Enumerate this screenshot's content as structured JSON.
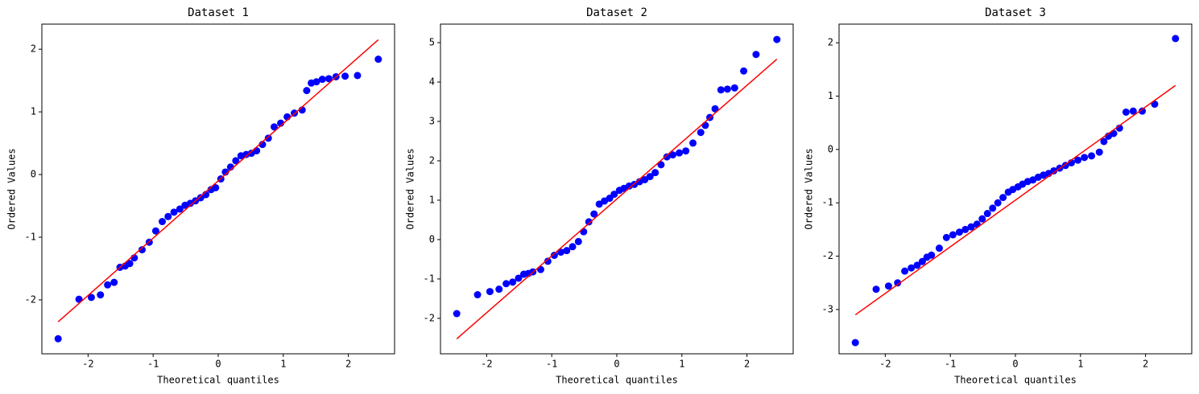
{
  "chart_data": [
    {
      "type": "scatter",
      "title": "Dataset 1",
      "xlabel": "Theoretical quantiles",
      "ylabel": "Ordered Values",
      "xlim": [
        -2.71,
        2.71
      ],
      "ylim": [
        -2.86,
        2.4
      ],
      "xticks": [
        -2,
        -1,
        0,
        1,
        2
      ],
      "yticks": [
        -2,
        -1,
        0,
        1,
        2
      ],
      "series": [
        {
          "mode": "markers",
          "color": "#0000ff",
          "x": [
            -2.46,
            -2.14,
            -1.95,
            -1.81,
            -1.7,
            -1.6,
            -1.51,
            -1.43,
            -1.36,
            -1.29,
            -1.17,
            -1.06,
            -0.96,
            -0.86,
            -0.77,
            -0.68,
            -0.59,
            -0.51,
            -0.43,
            -0.35,
            -0.27,
            -0.19,
            -0.11,
            -0.04,
            0.04,
            0.11,
            0.19,
            0.27,
            0.35,
            0.43,
            0.51,
            0.59,
            0.68,
            0.77,
            0.86,
            0.96,
            1.06,
            1.17,
            1.29,
            1.36,
            1.43,
            1.51,
            1.6,
            1.7,
            1.81,
            1.95,
            2.14,
            2.46
          ],
          "values": [
            -2.62,
            -1.99,
            -1.96,
            -1.92,
            -1.76,
            -1.72,
            -1.48,
            -1.46,
            -1.42,
            -1.33,
            -1.2,
            -1.08,
            -0.9,
            -0.75,
            -0.67,
            -0.6,
            -0.55,
            -0.49,
            -0.46,
            -0.42,
            -0.37,
            -0.32,
            -0.24,
            -0.21,
            -0.07,
            0.04,
            0.12,
            0.22,
            0.3,
            0.32,
            0.34,
            0.38,
            0.48,
            0.58,
            0.76,
            0.82,
            0.92,
            0.98,
            1.03,
            1.34,
            1.46,
            1.48,
            1.52,
            1.53,
            1.56,
            1.57,
            1.58,
            1.84
          ]
        },
        {
          "mode": "lines",
          "color": "#ff0000",
          "x": [
            -2.46,
            2.46
          ],
          "values": [
            -2.35,
            2.15
          ]
        }
      ]
    },
    {
      "type": "scatter",
      "title": "Dataset 2",
      "xlabel": "Theoretical quantiles",
      "ylabel": "Ordered Values",
      "xlim": [
        -2.71,
        2.71
      ],
      "ylim": [
        -2.9,
        5.47
      ],
      "xticks": [
        -2,
        -1,
        0,
        1,
        2
      ],
      "yticks": [
        -2,
        -1,
        0,
        1,
        2,
        3,
        4,
        5
      ],
      "series": [
        {
          "mode": "markers",
          "color": "#0000ff",
          "x": [
            -2.46,
            -2.14,
            -1.95,
            -1.81,
            -1.7,
            -1.6,
            -1.51,
            -1.43,
            -1.36,
            -1.29,
            -1.17,
            -1.06,
            -0.96,
            -0.86,
            -0.77,
            -0.68,
            -0.59,
            -0.51,
            -0.43,
            -0.35,
            -0.27,
            -0.19,
            -0.11,
            -0.04,
            0.04,
            0.11,
            0.19,
            0.27,
            0.35,
            0.43,
            0.51,
            0.59,
            0.68,
            0.77,
            0.86,
            0.96,
            1.06,
            1.17,
            1.29,
            1.36,
            1.43,
            1.51,
            1.6,
            1.7,
            1.81,
            1.95,
            2.14,
            2.46
          ],
          "values": [
            -1.88,
            -1.4,
            -1.32,
            -1.26,
            -1.12,
            -1.08,
            -0.98,
            -0.88,
            -0.86,
            -0.82,
            -0.76,
            -0.55,
            -0.4,
            -0.32,
            -0.28,
            -0.18,
            -0.05,
            0.2,
            0.45,
            0.65,
            0.9,
            0.98,
            1.05,
            1.15,
            1.25,
            1.3,
            1.36,
            1.4,
            1.47,
            1.52,
            1.6,
            1.7,
            1.9,
            2.1,
            2.15,
            2.2,
            2.25,
            2.45,
            2.72,
            2.9,
            3.1,
            3.32,
            3.8,
            3.82,
            3.85,
            4.28,
            4.7,
            5.08
          ]
        },
        {
          "mode": "lines",
          "color": "#ff0000",
          "x": [
            -2.46,
            2.46
          ],
          "values": [
            -2.52,
            4.58
          ]
        }
      ]
    },
    {
      "type": "scatter",
      "title": "Dataset 3",
      "xlabel": "Theoretical quantiles",
      "ylabel": "Ordered Values",
      "xlim": [
        -2.71,
        2.71
      ],
      "ylim": [
        -3.83,
        2.35
      ],
      "xticks": [
        -2,
        -1,
        0,
        1,
        2
      ],
      "yticks": [
        -3,
        -2,
        -1,
        0,
        1,
        2
      ],
      "series": [
        {
          "mode": "markers",
          "color": "#0000ff",
          "x": [
            -2.46,
            -2.14,
            -1.95,
            -1.81,
            -1.7,
            -1.6,
            -1.51,
            -1.43,
            -1.36,
            -1.29,
            -1.17,
            -1.06,
            -0.96,
            -0.86,
            -0.77,
            -0.68,
            -0.59,
            -0.51,
            -0.43,
            -0.35,
            -0.27,
            -0.19,
            -0.11,
            -0.04,
            0.04,
            0.11,
            0.19,
            0.27,
            0.35,
            0.43,
            0.51,
            0.59,
            0.68,
            0.77,
            0.86,
            0.96,
            1.06,
            1.17,
            1.29,
            1.36,
            1.43,
            1.51,
            1.6,
            1.7,
            1.81,
            1.95,
            2.14,
            2.46
          ],
          "values": [
            -3.62,
            -2.62,
            -2.56,
            -2.5,
            -2.28,
            -2.22,
            -2.17,
            -2.1,
            -2.02,
            -1.98,
            -1.85,
            -1.65,
            -1.6,
            -1.55,
            -1.5,
            -1.45,
            -1.4,
            -1.3,
            -1.2,
            -1.1,
            -1.0,
            -0.9,
            -0.8,
            -0.75,
            -0.7,
            -0.65,
            -0.6,
            -0.57,
            -0.52,
            -0.48,
            -0.45,
            -0.4,
            -0.35,
            -0.3,
            -0.25,
            -0.2,
            -0.15,
            -0.12,
            -0.05,
            0.15,
            0.25,
            0.3,
            0.4,
            0.7,
            0.72,
            0.72,
            0.85,
            2.08
          ]
        },
        {
          "mode": "lines",
          "color": "#ff0000",
          "x": [
            -2.46,
            2.46
          ],
          "values": [
            -3.1,
            1.2
          ]
        }
      ]
    }
  ]
}
